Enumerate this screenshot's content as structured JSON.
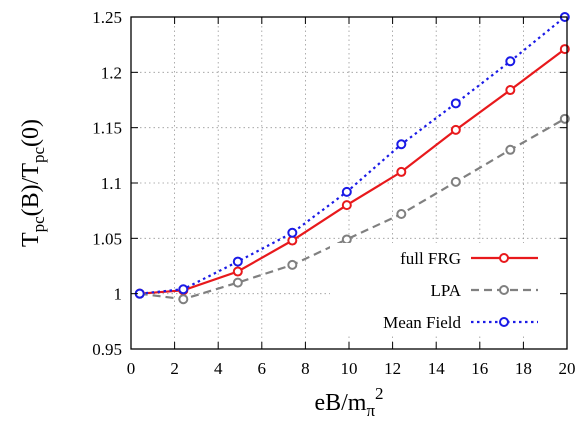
{
  "chart_data": {
    "type": "line",
    "title": "",
    "xlabel": {
      "base": "eB/m",
      "sub": "π",
      "sup": "2"
    },
    "ylabel": {
      "p1": "T",
      "s1": "pc",
      "p2": "(B)/T",
      "s2": "pc",
      "p3": "(0)"
    },
    "xlim": [
      0,
      20
    ],
    "ylim": [
      0.95,
      1.25
    ],
    "xticks": [
      0,
      2,
      4,
      6,
      8,
      10,
      12,
      14,
      16,
      18,
      20
    ],
    "yticks": [
      0.95,
      1,
      1.05,
      1.1,
      1.15,
      1.2,
      1.25
    ],
    "xtick_labels": [
      "0",
      "2",
      "4",
      "6",
      "8",
      "10",
      "12",
      "14",
      "16",
      "18",
      "20"
    ],
    "ytick_labels": [
      "0.95",
      "1",
      "1.05",
      "1.1",
      "1.15",
      "1.2",
      "1.25"
    ],
    "grid": true,
    "legend_position": "bottom-right",
    "series": [
      {
        "name": "full FRG",
        "color": "#e8191c",
        "dash": "solid",
        "x": [
          0.4,
          2.4,
          4.9,
          7.4,
          9.9,
          12.4,
          14.9,
          17.4,
          19.9
        ],
        "y": [
          1.0,
          1.003,
          1.02,
          1.048,
          1.08,
          1.11,
          1.148,
          1.184,
          1.221
        ]
      },
      {
        "name": "LPA",
        "color": "#808080",
        "dash": "dashed",
        "x": [
          0.4,
          2.4,
          4.9,
          7.4,
          9.9,
          12.4,
          14.9,
          17.4,
          19.9
        ],
        "y": [
          1.0,
          0.995,
          1.01,
          1.026,
          1.049,
          1.072,
          1.101,
          1.13,
          1.158
        ]
      },
      {
        "name": "Mean Field",
        "color": "#1a1ae6",
        "dash": "dotted",
        "x": [
          0.4,
          2.4,
          4.9,
          7.4,
          9.9,
          12.4,
          14.9,
          17.4,
          19.9
        ],
        "y": [
          1.0,
          1.004,
          1.029,
          1.055,
          1.092,
          1.135,
          1.172,
          1.21,
          1.25
        ]
      }
    ]
  }
}
